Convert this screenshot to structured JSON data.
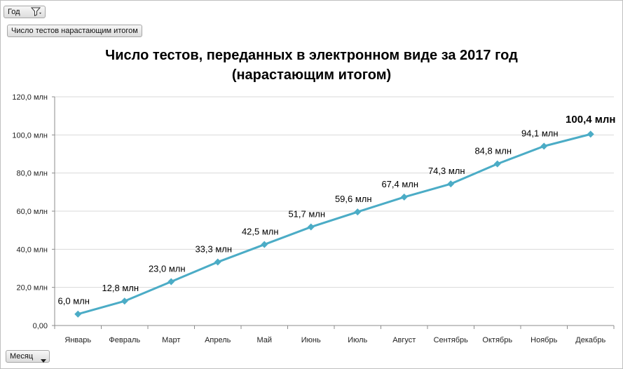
{
  "filters": {
    "year_label": "Год",
    "measure_label": "Число тестов нарастающим итогом",
    "month_label": "Месяц"
  },
  "icons": {
    "filter": "filter-funnel-icon",
    "dropdown": "chevron-down-icon"
  },
  "chart_data": {
    "type": "line",
    "title_line1": "Число тестов, переданных в электронном виде за 2017 год",
    "title_line2": "(нарастающим итогом)",
    "categories": [
      "Январь",
      "Февраль",
      "Март",
      "Апрель",
      "Май",
      "Июнь",
      "Июль",
      "Август",
      "Сентябрь",
      "Октябрь",
      "Ноябрь",
      "Декабрь"
    ],
    "values": [
      6.0,
      12.8,
      23.0,
      33.3,
      42.5,
      51.7,
      59.6,
      67.4,
      74.3,
      84.8,
      94.1,
      100.4
    ],
    "data_labels": [
      "6,0 млн",
      "12,8 млн",
      "23,0 млн",
      "33,3 млн",
      "42,5 млн",
      "51,7 млн",
      "59,6 млн",
      "67,4 млн",
      "74,3 млн",
      "84,8 млн",
      "94,1 млн",
      "100,4 млн"
    ],
    "y_ticks": [
      0,
      20,
      40,
      60,
      80,
      100,
      120
    ],
    "y_tick_labels": [
      "0,00",
      "20,0 млн",
      "40,0 млн",
      "60,0 млн",
      "80,0 млн",
      "100,0 млн",
      "120,0 млн"
    ],
    "ylim": [
      0,
      120
    ],
    "grid": true,
    "legend": "none",
    "line_color": "#4bacc6",
    "grid_color": "#d9d9d9"
  }
}
